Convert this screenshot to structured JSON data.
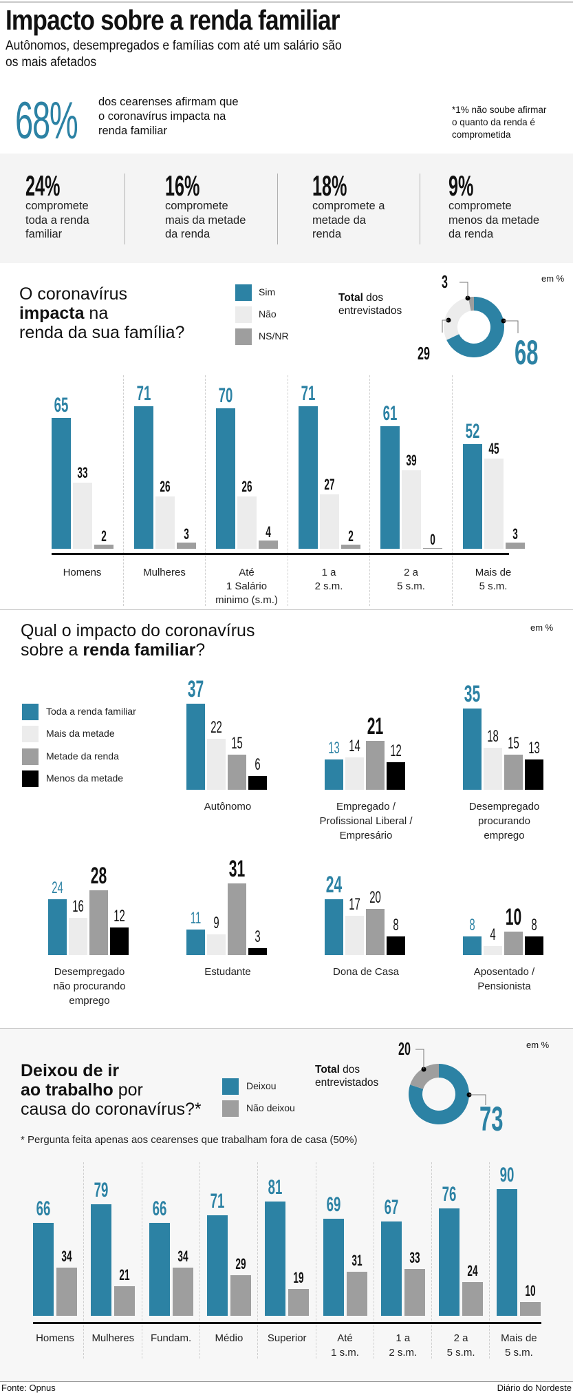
{
  "header": {
    "title": "Impacto sobre a renda familiar",
    "subtitle_line1": "Autônomos, desempregados e famílias com até um salário são",
    "subtitle_line2": "os mais afetados"
  },
  "highlight": {
    "value": "68%",
    "text_lines": [
      "dos cearenses afirmam que",
      "o coronavírus impacta na",
      "renda familiar"
    ],
    "note_lines": [
      "*1% não soube afirmar",
      "o quanto da renda é",
      "comprometida"
    ]
  },
  "stats": [
    {
      "value": "24%",
      "lines": [
        "compromete",
        "toda a renda",
        "familiar"
      ]
    },
    {
      "value": "16%",
      "lines": [
        "compromete",
        "mais da metade",
        "da renda"
      ]
    },
    {
      "value": "18%",
      "lines": [
        "compromete a",
        "metade da",
        "renda"
      ]
    },
    {
      "value": "9%",
      "lines": [
        "compromete",
        "menos da metade",
        "da renda"
      ]
    }
  ],
  "colors": {
    "blue": "#2c82a4",
    "light": "#ececec",
    "gray": "#9e9e9e",
    "black": "#000000"
  },
  "chart_data": [
    {
      "type": "bar",
      "title": "O coronavírus impacta na renda da sua família?",
      "title_parts": {
        "line1": "O coronavírus",
        "bold": "impacta",
        "line2_rest": " na",
        "line3": "renda da sua família?"
      },
      "unit_label": "em %",
      "legend": [
        "Sim",
        "Não",
        "NS/NR"
      ],
      "categories": [
        [
          "Homens"
        ],
        [
          "Mulheres"
        ],
        [
          "Até",
          "1 Salário",
          "minimo (s.m.)"
        ],
        [
          "1 a",
          "2 s.m."
        ],
        [
          "2 a",
          "5 s.m."
        ],
        [
          "Mais de",
          "5 s.m."
        ]
      ],
      "series": [
        {
          "name": "Sim",
          "values": [
            65,
            71,
            70,
            71,
            61,
            52
          ]
        },
        {
          "name": "Não",
          "values": [
            33,
            26,
            26,
            27,
            39,
            45
          ]
        },
        {
          "name": "NS/NR",
          "values": [
            2,
            3,
            4,
            2,
            0,
            3
          ]
        }
      ],
      "donut": {
        "label_bold": "Total",
        "label_rest": " dos",
        "label_line2": "entrevistados",
        "slices": [
          {
            "name": "Sim",
            "value": 68
          },
          {
            "name": "Não",
            "value": 29
          },
          {
            "name": "NS/NR",
            "value": 3
          }
        ]
      }
    },
    {
      "type": "bar",
      "title": "Qual o impacto do coronavírus sobre a renda familiar?",
      "title_parts": {
        "line1": "Qual o impacto do coronavírus",
        "line2_pre": "sobre a ",
        "bold": "renda familiar",
        "line2_post": "?"
      },
      "unit_label": "em %",
      "legend": [
        "Toda a renda familiar",
        "Mais da metade",
        "Metade da renda",
        "Menos da metade"
      ],
      "categories": [
        [
          "Autônomo"
        ],
        [
          "Empregado /",
          "Profissional Liberal /",
          "Empresário"
        ],
        [
          "Desempregado",
          "procurando",
          "emprego"
        ],
        [
          "Desempregado",
          "não procurando",
          "emprego"
        ],
        [
          "Estudante"
        ],
        [
          "Dona de Casa"
        ],
        [
          "Aposentado /",
          "Pensionista"
        ]
      ],
      "series": [
        {
          "name": "Toda a renda familiar",
          "values": [
            37,
            13,
            35,
            24,
            11,
            24,
            8
          ]
        },
        {
          "name": "Mais da metade",
          "values": [
            22,
            14,
            18,
            16,
            9,
            17,
            4
          ]
        },
        {
          "name": "Metade da renda",
          "values": [
            15,
            21,
            15,
            28,
            31,
            20,
            10
          ]
        },
        {
          "name": "Menos da metade",
          "values": [
            6,
            12,
            13,
            12,
            3,
            8,
            8
          ]
        }
      ]
    },
    {
      "type": "bar",
      "title": "Deixou de ir ao trabalho por causa do coronavírus?*",
      "title_parts": {
        "line1_bold": "Deixou de ir",
        "line2_bold": "ao trabalho",
        "line2_rest": " por",
        "line3": "causa do coronavírus?*"
      },
      "unit_label": "em %",
      "footnote": "* Pergunta feita apenas aos cearenses que trabalham fora de casa (50%)",
      "legend": [
        "Deixou",
        "Não deixou"
      ],
      "categories": [
        [
          "Homens"
        ],
        [
          "Mulheres"
        ],
        [
          "Fundam."
        ],
        [
          "Médio"
        ],
        [
          "Superior"
        ],
        [
          "Até",
          "1 s.m."
        ],
        [
          "1 a",
          "2 s.m."
        ],
        [
          "2 a",
          "5 s.m."
        ],
        [
          "Mais de",
          "5 s.m."
        ]
      ],
      "series": [
        {
          "name": "Deixou",
          "values": [
            66,
            79,
            66,
            71,
            81,
            69,
            67,
            76,
            90
          ]
        },
        {
          "name": "Não deixou",
          "values": [
            34,
            21,
            34,
            29,
            19,
            31,
            33,
            24,
            10
          ]
        }
      ],
      "donut": {
        "label_bold": "Total",
        "label_rest": " dos",
        "label_line2": "entrevistados",
        "slices": [
          {
            "name": "Deixou",
            "value": 73
          },
          {
            "name": "Não deixou",
            "value": 20
          }
        ]
      }
    }
  ],
  "footer": {
    "source": "Fonte: Opnus",
    "publisher": "Diário do Nordeste"
  }
}
